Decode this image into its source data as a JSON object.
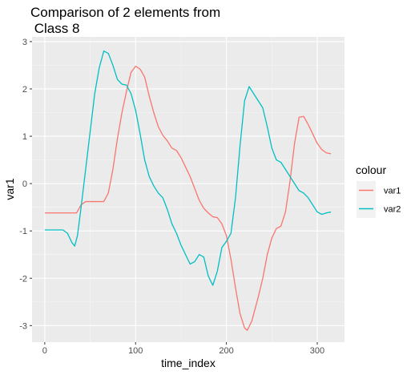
{
  "chart_data": {
    "type": "line",
    "title_lines": [
      "Comparison of 2 elements from",
      " Class 8"
    ],
    "xlabel": "time_index",
    "ylabel": "var1",
    "xlim": [
      -14,
      330
    ],
    "ylim": [
      -3.35,
      3.1
    ],
    "x_ticks": [
      0,
      100,
      200,
      300
    ],
    "y_ticks": [
      -3,
      -2,
      -1,
      0,
      1,
      2,
      3
    ],
    "grid": true,
    "legend": {
      "title": "colour",
      "placement": "right"
    },
    "series": [
      {
        "name": "var1",
        "color": "#F8766D",
        "points": [
          [
            0,
            -0.62
          ],
          [
            10,
            -0.62
          ],
          [
            20,
            -0.62
          ],
          [
            30,
            -0.62
          ],
          [
            35,
            -0.62
          ],
          [
            40,
            -0.45
          ],
          [
            45,
            -0.38
          ],
          [
            50,
            -0.38
          ],
          [
            55,
            -0.38
          ],
          [
            60,
            -0.38
          ],
          [
            65,
            -0.38
          ],
          [
            70,
            -0.2
          ],
          [
            75,
            0.3
          ],
          [
            80,
            0.95
          ],
          [
            85,
            1.5
          ],
          [
            90,
            1.95
          ],
          [
            95,
            2.35
          ],
          [
            100,
            2.48
          ],
          [
            105,
            2.42
          ],
          [
            110,
            2.25
          ],
          [
            115,
            1.85
          ],
          [
            120,
            1.5
          ],
          [
            125,
            1.2
          ],
          [
            130,
            1.02
          ],
          [
            135,
            0.9
          ],
          [
            140,
            0.75
          ],
          [
            145,
            0.7
          ],
          [
            150,
            0.55
          ],
          [
            155,
            0.35
          ],
          [
            160,
            0.15
          ],
          [
            165,
            -0.1
          ],
          [
            170,
            -0.35
          ],
          [
            175,
            -0.52
          ],
          [
            180,
            -0.62
          ],
          [
            185,
            -0.7
          ],
          [
            190,
            -0.72
          ],
          [
            195,
            -0.85
          ],
          [
            200,
            -1.1
          ],
          [
            205,
            -1.6
          ],
          [
            210,
            -2.2
          ],
          [
            215,
            -2.75
          ],
          [
            220,
            -3.05
          ],
          [
            223,
            -3.1
          ],
          [
            228,
            -2.9
          ],
          [
            235,
            -2.4
          ],
          [
            240,
            -2.0
          ],
          [
            245,
            -1.5
          ],
          [
            250,
            -1.15
          ],
          [
            255,
            -0.95
          ],
          [
            260,
            -0.9
          ],
          [
            265,
            -0.6
          ],
          [
            270,
            0.05
          ],
          [
            275,
            0.85
          ],
          [
            280,
            1.4
          ],
          [
            285,
            1.42
          ],
          [
            290,
            1.25
          ],
          [
            295,
            1.05
          ],
          [
            300,
            0.85
          ],
          [
            305,
            0.72
          ],
          [
            310,
            0.65
          ],
          [
            315,
            0.63
          ]
        ]
      },
      {
        "name": "var2",
        "color": "#00BFC4",
        "points": [
          [
            0,
            -0.98
          ],
          [
            5,
            -0.98
          ],
          [
            10,
            -0.98
          ],
          [
            15,
            -0.98
          ],
          [
            20,
            -0.98
          ],
          [
            25,
            -1.05
          ],
          [
            30,
            -1.25
          ],
          [
            33,
            -1.32
          ],
          [
            36,
            -1.1
          ],
          [
            40,
            -0.5
          ],
          [
            45,
            0.3
          ],
          [
            50,
            1.1
          ],
          [
            55,
            1.9
          ],
          [
            60,
            2.45
          ],
          [
            65,
            2.8
          ],
          [
            70,
            2.75
          ],
          [
            75,
            2.5
          ],
          [
            80,
            2.2
          ],
          [
            85,
            2.1
          ],
          [
            90,
            2.08
          ],
          [
            95,
            1.9
          ],
          [
            100,
            1.55
          ],
          [
            105,
            1.05
          ],
          [
            110,
            0.5
          ],
          [
            115,
            0.15
          ],
          [
            120,
            -0.05
          ],
          [
            125,
            -0.2
          ],
          [
            130,
            -0.3
          ],
          [
            135,
            -0.55
          ],
          [
            140,
            -0.85
          ],
          [
            145,
            -1.05
          ],
          [
            150,
            -1.3
          ],
          [
            155,
            -1.5
          ],
          [
            160,
            -1.7
          ],
          [
            165,
            -1.65
          ],
          [
            170,
            -1.5
          ],
          [
            175,
            -1.55
          ],
          [
            180,
            -1.95
          ],
          [
            185,
            -2.15
          ],
          [
            190,
            -1.85
          ],
          [
            195,
            -1.35
          ],
          [
            200,
            -1.22
          ],
          [
            205,
            -1.05
          ],
          [
            210,
            -0.3
          ],
          [
            215,
            0.8
          ],
          [
            220,
            1.75
          ],
          [
            225,
            2.05
          ],
          [
            230,
            1.9
          ],
          [
            235,
            1.75
          ],
          [
            240,
            1.6
          ],
          [
            245,
            1.2
          ],
          [
            250,
            0.75
          ],
          [
            255,
            0.5
          ],
          [
            260,
            0.45
          ],
          [
            265,
            0.3
          ],
          [
            270,
            0.15
          ],
          [
            275,
            0.0
          ],
          [
            280,
            -0.15
          ],
          [
            285,
            -0.2
          ],
          [
            290,
            -0.3
          ],
          [
            295,
            -0.45
          ],
          [
            300,
            -0.6
          ],
          [
            305,
            -0.65
          ],
          [
            310,
            -0.62
          ],
          [
            315,
            -0.6
          ]
        ]
      }
    ]
  }
}
